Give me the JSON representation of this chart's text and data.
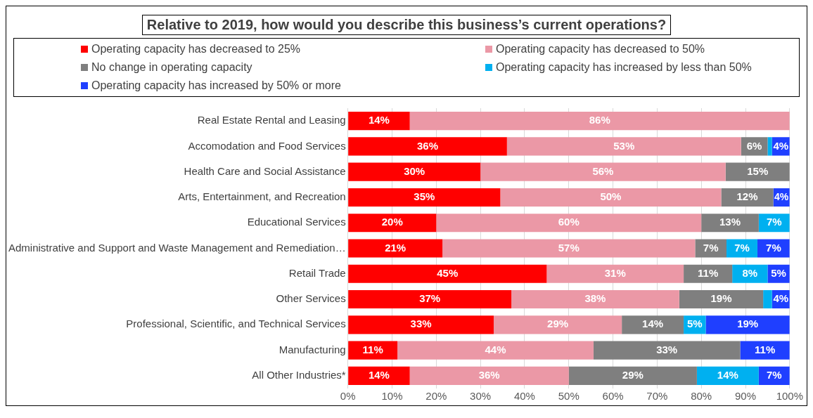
{
  "chart_data": {
    "type": "bar",
    "orientation": "horizontal",
    "stacked": true,
    "title": "Relative to 2019, how would you describe this business’s current operations?",
    "legend": "top",
    "grid": "x",
    "categories": [
      "Real Estate Rental and Leasing",
      "Accomodation and Food Services",
      "Health Care and Social Assistance",
      "Arts, Entertainment, and Recreation",
      "Educational Services",
      "Administrative and Support and Waste Management and Remediation…",
      "Retail Trade",
      "Other Services",
      "Professional, Scientific, and Technical Services",
      "Manufacturing",
      "All Other Industries*"
    ],
    "xlim": [
      0,
      100
    ],
    "xticks": [
      {
        "value": 0,
        "label": "0%"
      },
      {
        "value": 10,
        "label": "10%"
      },
      {
        "value": 20,
        "label": "20%"
      },
      {
        "value": 30,
        "label": "30%"
      },
      {
        "value": 40,
        "label": "40%"
      },
      {
        "value": 50,
        "label": "50%"
      },
      {
        "value": 60,
        "label": "60%"
      },
      {
        "value": 70,
        "label": "70%"
      },
      {
        "value": 80,
        "label": "80%"
      },
      {
        "value": 90,
        "label": "90%"
      },
      {
        "value": 100,
        "label": "100%"
      }
    ],
    "series": [
      {
        "name": "Operating capacity has decreased to 25%",
        "color": "#ff0000",
        "values": [
          14,
          36,
          30,
          34.5,
          20,
          21.4,
          45,
          37,
          33,
          11.2,
          14
        ],
        "value_labels": [
          "14%",
          "36%",
          "30%",
          "35%",
          "20%",
          "21%",
          "45%",
          "37%",
          "33%",
          "11%",
          "14%"
        ]
      },
      {
        "name": "Operating capacity has decreased to 50%",
        "color": "#eb98a6",
        "values": [
          86,
          53,
          55.5,
          50,
          60,
          57.2,
          31,
          38,
          29,
          44.4,
          36
        ],
        "value_labels": [
          "86%",
          "53%",
          "56%",
          "50%",
          "60%",
          "57%",
          "31%",
          "38%",
          "29%",
          "44%",
          "36%"
        ]
      },
      {
        "name": "No change in operating capacity",
        "color": "#7f7f7f",
        "values": [
          0,
          6,
          14.5,
          11.8,
          13,
          7.1,
          11,
          19,
          14,
          33.2,
          29
        ],
        "value_labels": [
          null,
          "6%",
          "15%",
          "12%",
          "13%",
          "7%",
          "11%",
          "19%",
          "14%",
          "33%",
          "29%"
        ]
      },
      {
        "name": "Operating capacity has increased by less than 50%",
        "color": "#00b0f0",
        "values": [
          0,
          1,
          0,
          0,
          7,
          7,
          8,
          2,
          5,
          0,
          14
        ],
        "value_labels": [
          null,
          null,
          null,
          null,
          "7%",
          "7%",
          "8%",
          null,
          "5%",
          null,
          "14%"
        ]
      },
      {
        "name": "Operating capacity has increased by 50% or more",
        "color": "#1f3fff",
        "values": [
          0,
          4,
          0,
          3.7,
          0,
          7.3,
          5,
          4,
          19,
          11.2,
          7
        ],
        "value_labels": [
          null,
          "4%",
          null,
          "4%",
          null,
          "7%",
          "5%",
          "4%",
          "19%",
          "11%",
          "7%"
        ]
      }
    ]
  }
}
